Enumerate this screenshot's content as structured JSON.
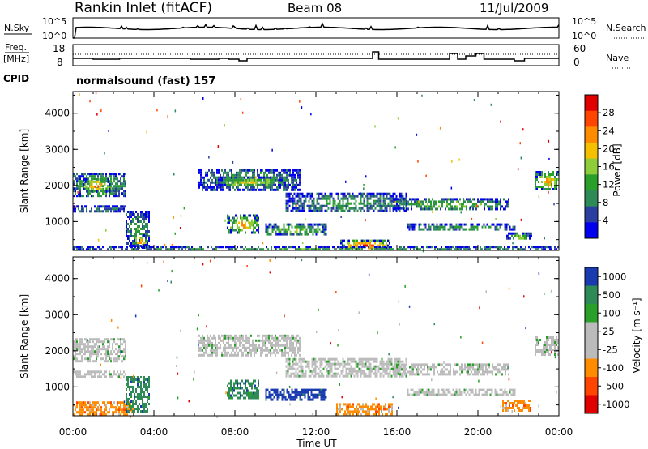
{
  "header": {
    "station": "Rankin Inlet (fitACF)",
    "beam": "Beam 08",
    "date": "11/Jul/2009"
  },
  "top_panel": {
    "left_label": "N.Sky",
    "right_label": "N.Search",
    "ticks": [
      "10^5",
      "10^0"
    ]
  },
  "freq_panel": {
    "left_label_line1": "Freq.",
    "left_label_line2": "[MHz]",
    "right_label": "Nave",
    "left_ticks": [
      "18",
      "8"
    ],
    "right_ticks": [
      "60",
      "0"
    ]
  },
  "cpid": {
    "label": "CPID",
    "value": "normalsound (fast) 157"
  },
  "colors": {
    "power": [
      "#0000ee",
      "#2a3fa0",
      "#2e8b57",
      "#2aa02a",
      "#8fcc3a",
      "#f5c000",
      "#ff8c00",
      "#ff4500",
      "#e00000"
    ],
    "velocity": [
      "#1a3ab0",
      "#2e8b57",
      "#2aa02a",
      "#bbbbbb",
      "#bbbbbb",
      "#ff8c00",
      "#ff4500",
      "#e00000"
    ]
  },
  "chart_data": [
    {
      "type": "heatmap",
      "name": "power",
      "ylabel": "Slant Range [km]",
      "yticks": [
        "1000",
        "2000",
        "3000",
        "4000"
      ],
      "ylim": [
        200,
        4600
      ],
      "xlim_hours": [
        0,
        24
      ],
      "colorbar_label": "Power [dB]",
      "colorbar_ticks": [
        "4",
        "8",
        "12",
        "16",
        "20",
        "24",
        "28"
      ],
      "bands": [
        {
          "t0": 0.0,
          "t1": 2.6,
          "r0": 1700,
          "r1": 2350,
          "level": 4
        },
        {
          "t0": 0.5,
          "t1": 1.8,
          "r0": 1850,
          "r1": 2200,
          "level": 7
        },
        {
          "t0": 0.0,
          "t1": 2.6,
          "r0": 1250,
          "r1": 1450,
          "level": 2
        },
        {
          "t0": 2.6,
          "t1": 3.8,
          "r0": 300,
          "r1": 1300,
          "level": 3
        },
        {
          "t0": 3.0,
          "t1": 3.6,
          "r0": 300,
          "r1": 650,
          "level": 7
        },
        {
          "t0": 6.2,
          "t1": 11.2,
          "r0": 1900,
          "r1": 2450,
          "level": 3
        },
        {
          "t0": 7.0,
          "t1": 10.5,
          "r0": 2000,
          "r1": 2250,
          "level": 5
        },
        {
          "t0": 7.6,
          "t1": 9.2,
          "r0": 700,
          "r1": 1200,
          "level": 6
        },
        {
          "t0": 9.5,
          "t1": 12.5,
          "r0": 650,
          "r1": 950,
          "level": 4
        },
        {
          "t0": 10.5,
          "t1": 16.5,
          "r0": 1300,
          "r1": 1800,
          "level": 3
        },
        {
          "t0": 13.2,
          "t1": 15.6,
          "r0": 250,
          "r1": 500,
          "level": 8
        },
        {
          "t0": 15.8,
          "t1": 21.5,
          "r0": 1350,
          "r1": 1650,
          "level": 4
        },
        {
          "t0": 16.5,
          "t1": 21.8,
          "r0": 750,
          "r1": 950,
          "level": 3
        },
        {
          "t0": 21.4,
          "t1": 22.6,
          "r0": 500,
          "r1": 700,
          "level": 4
        },
        {
          "t0": 22.8,
          "t1": 24.0,
          "r0": 1900,
          "r1": 2400,
          "level": 6
        },
        {
          "t0": 0.0,
          "t1": 24.0,
          "r0": 200,
          "r1": 330,
          "level": 3
        }
      ]
    },
    {
      "type": "heatmap",
      "name": "velocity",
      "ylabel": "Slant Range [km]",
      "yticks": [
        "1000",
        "2000",
        "3000",
        "4000"
      ],
      "ylim": [
        200,
        4600
      ],
      "xlim_hours": [
        0,
        24
      ],
      "xlabel": "Time UT",
      "xticks": [
        "00:00",
        "04:00",
        "08:00",
        "12:00",
        "16:00",
        "20:00",
        "00:00"
      ],
      "colorbar_label": "Velocity [m s⁻¹]",
      "colorbar_ticks": [
        "1000",
        "500",
        "100",
        "25",
        "-25",
        "-100",
        "-500",
        "-1000"
      ],
      "bands": [
        {
          "t0": 0.0,
          "t1": 2.6,
          "r0": 1700,
          "r1": 2350,
          "level": 3
        },
        {
          "t0": 0.0,
          "t1": 2.6,
          "r0": 1250,
          "r1": 1450,
          "level": 3
        },
        {
          "t0": 0.0,
          "t1": 3.0,
          "r0": 250,
          "r1": 600,
          "level": 5
        },
        {
          "t0": 2.6,
          "t1": 3.8,
          "r0": 300,
          "r1": 1300,
          "level": 1
        },
        {
          "t0": 6.2,
          "t1": 11.2,
          "r0": 1900,
          "r1": 2450,
          "level": 3
        },
        {
          "t0": 7.6,
          "t1": 9.2,
          "r0": 700,
          "r1": 1200,
          "level": 1
        },
        {
          "t0": 9.5,
          "t1": 12.5,
          "r0": 650,
          "r1": 950,
          "level": 0
        },
        {
          "t0": 10.5,
          "t1": 16.5,
          "r0": 1300,
          "r1": 1800,
          "level": 3
        },
        {
          "t0": 13.0,
          "t1": 15.8,
          "r0": 250,
          "r1": 550,
          "level": 5
        },
        {
          "t0": 15.8,
          "t1": 21.5,
          "r0": 1350,
          "r1": 1650,
          "level": 3
        },
        {
          "t0": 16.5,
          "t1": 21.8,
          "r0": 750,
          "r1": 950,
          "level": 3
        },
        {
          "t0": 21.2,
          "t1": 22.6,
          "r0": 350,
          "r1": 650,
          "level": 5
        },
        {
          "t0": 22.8,
          "t1": 24.0,
          "r0": 1900,
          "r1": 2400,
          "level": 3
        }
      ]
    }
  ]
}
